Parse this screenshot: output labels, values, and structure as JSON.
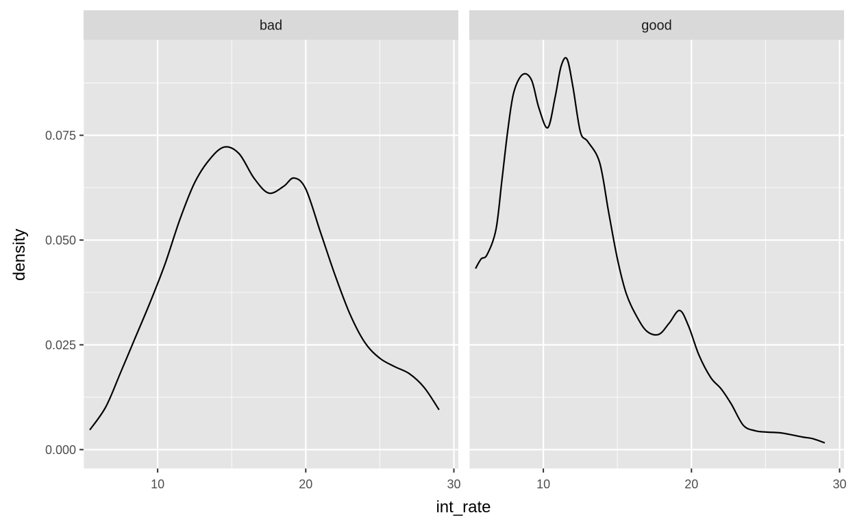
{
  "chart_data": {
    "type": "line",
    "subtype": "density",
    "facet_by": "",
    "xlabel": "int_rate",
    "ylabel": "density",
    "xlim": [
      5.0,
      30.3
    ],
    "ylim": [
      -0.0045,
      0.0978
    ],
    "x_ticks": [
      10,
      20,
      30
    ],
    "x_minor_ticks": [
      5,
      15,
      25
    ],
    "y_ticks": [
      0.0,
      0.025,
      0.05,
      0.075
    ],
    "y_tick_labels": [
      "0.000",
      "0.025",
      "0.050",
      "0.075"
    ],
    "y_minor_ticks": [
      0.0125,
      0.0375,
      0.0625,
      0.0875
    ],
    "grid": true,
    "legend": "none",
    "colors": {
      "panel_background": "#e5e5e5",
      "strip_background": "#d9d9d9",
      "grid": "#ffffff",
      "line": "#000000",
      "tick": "#333333"
    },
    "panels": [
      {
        "label": "bad",
        "x": [
          5.42,
          6.5,
          7.5,
          8.5,
          9.5,
          10.5,
          11.5,
          12.5,
          13.5,
          14.5,
          15.5,
          16.5,
          17.5,
          18.5,
          19.2,
          20.0,
          21.0,
          22.0,
          23.0,
          24.0,
          25.0,
          26.0,
          27.0,
          28.0,
          29.0
        ],
        "y": [
          0.0047,
          0.0102,
          0.0184,
          0.0268,
          0.0352,
          0.0443,
          0.0549,
          0.0637,
          0.0692,
          0.0722,
          0.0706,
          0.0648,
          0.0612,
          0.0628,
          0.0648,
          0.0622,
          0.0518,
          0.0414,
          0.0322,
          0.0255,
          0.0218,
          0.0198,
          0.0181,
          0.0148,
          0.0095
        ]
      },
      {
        "label": "good",
        "x": [
          5.42,
          5.8,
          6.2,
          6.8,
          7.2,
          7.6,
          8.0,
          8.6,
          9.2,
          9.7,
          10.3,
          10.8,
          11.2,
          11.6,
          12.0,
          12.5,
          13.0,
          13.8,
          14.4,
          15.0,
          15.6,
          16.3,
          17.0,
          17.8,
          18.5,
          19.2,
          19.8,
          20.5,
          21.3,
          22.0,
          22.7,
          23.5,
          24.3,
          25.0,
          26.0,
          26.8,
          27.5,
          28.2,
          29.0
        ],
        "y": [
          0.0432,
          0.0455,
          0.0465,
          0.0525,
          0.0642,
          0.0762,
          0.0852,
          0.0895,
          0.0882,
          0.0815,
          0.0768,
          0.0842,
          0.0915,
          0.0932,
          0.0865,
          0.0758,
          0.0735,
          0.0685,
          0.0568,
          0.0455,
          0.0372,
          0.0318,
          0.0282,
          0.0275,
          0.0302,
          0.0332,
          0.0295,
          0.0226,
          0.0172,
          0.0145,
          0.0108,
          0.0058,
          0.0045,
          0.0042,
          0.004,
          0.0035,
          0.003,
          0.0026,
          0.0016
        ]
      }
    ]
  }
}
